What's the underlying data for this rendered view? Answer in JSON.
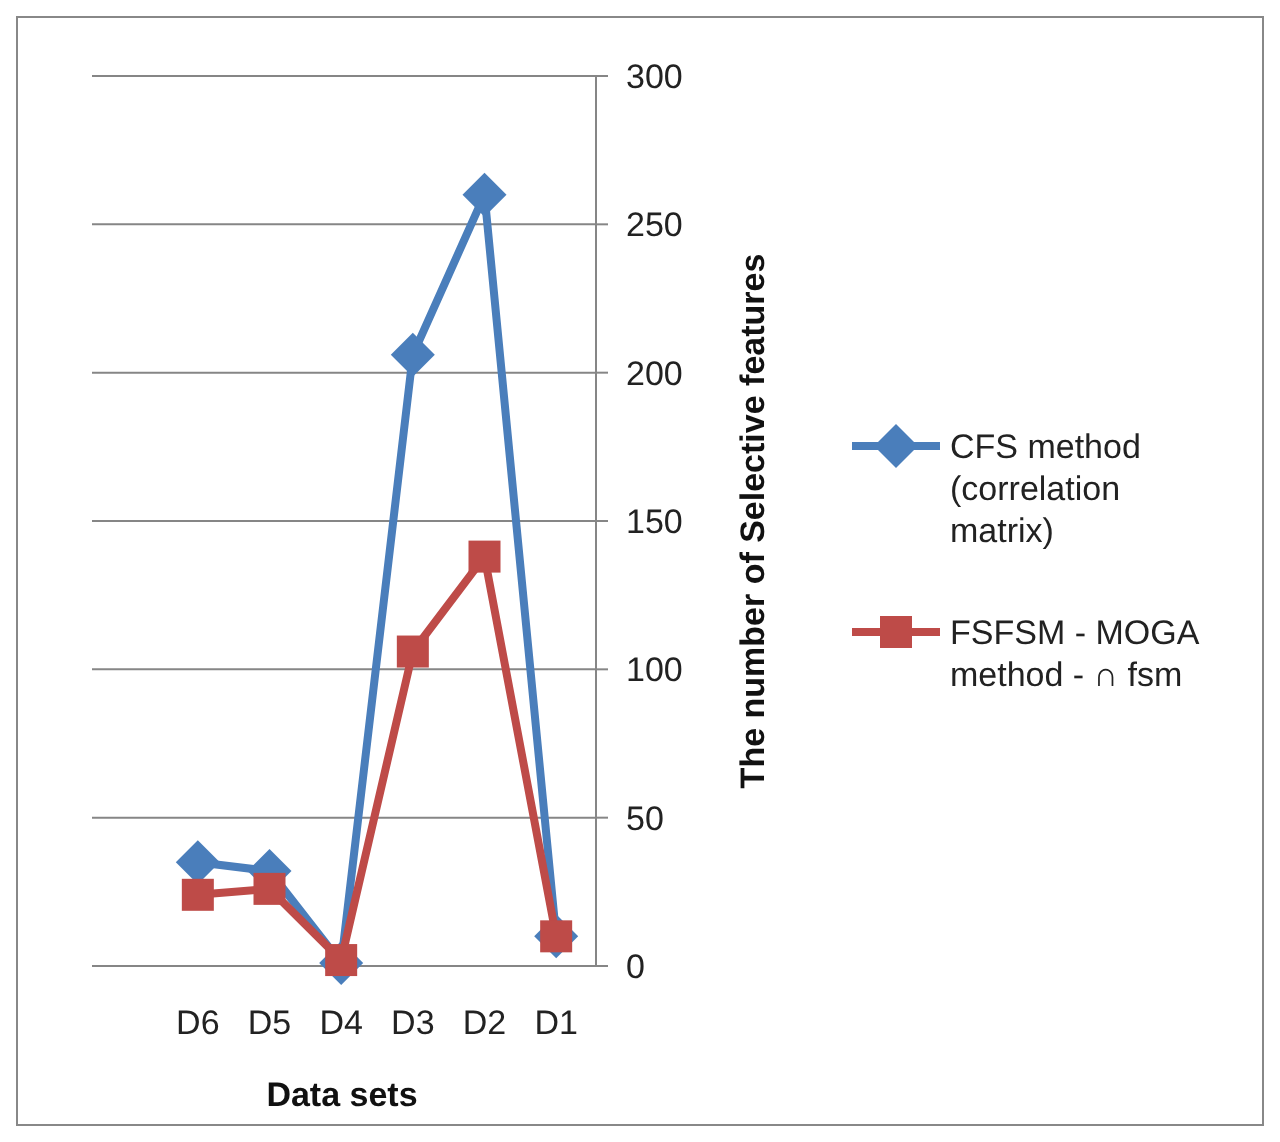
{
  "chart_data": {
    "type": "line",
    "xlabel": "Data sets",
    "ylabel": "The number of Selective features",
    "categories": [
      "D6",
      "D5",
      "D4",
      "D3",
      "D2",
      "D1"
    ],
    "series": [
      {
        "name": "CFS method (correlation matrix)",
        "color": "#4a7ebb",
        "marker": "diamond",
        "values": [
          35,
          32,
          1,
          206,
          260,
          10
        ]
      },
      {
        "name": "FSFSM - MOGA method - ∩ fsm",
        "color": "#be4b48",
        "marker": "square",
        "values": [
          24,
          26,
          2,
          106,
          138,
          10
        ]
      }
    ],
    "ylim": [
      0,
      300
    ],
    "yticks": [
      0,
      50,
      100,
      150,
      200,
      250,
      300
    ],
    "grid": "y",
    "legend": "right"
  }
}
